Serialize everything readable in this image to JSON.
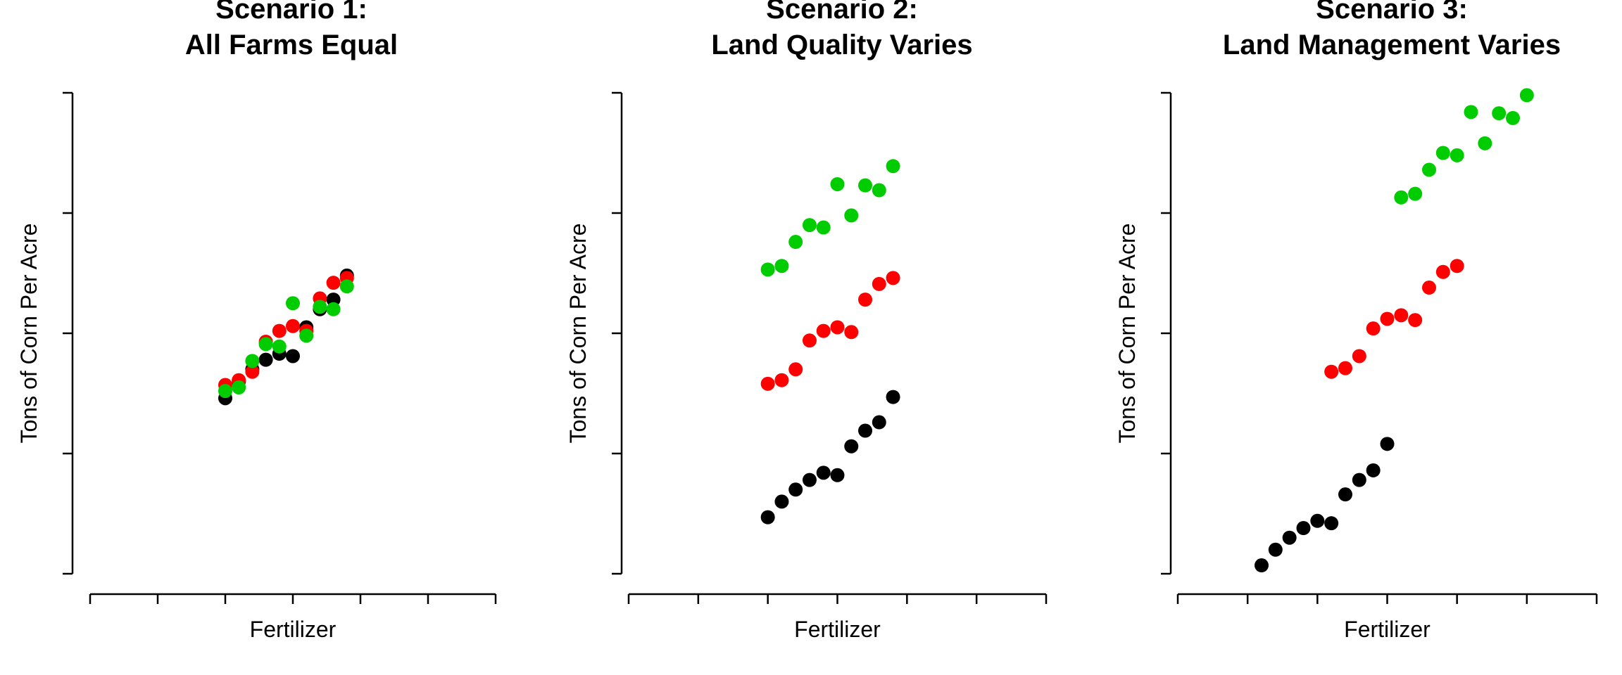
{
  "chart_data": [
    {
      "type": "scatter",
      "title": [
        "Scenario 1:",
        "All Farms Equal"
      ],
      "xlabel": "Fertilizer",
      "ylabel": "Tons of Corn Per Acre",
      "xlim": [
        0,
        12
      ],
      "ylim": [
        0,
        4
      ],
      "xticks": 7,
      "yticks": 5,
      "grid": false,
      "series": [
        {
          "color": "#000000",
          "x": [
            4.0,
            4.4,
            4.8,
            5.2,
            5.6,
            6.0,
            6.4,
            6.8,
            7.2,
            7.6
          ],
          "y": [
            1.46,
            1.6,
            1.7,
            1.78,
            1.83,
            1.81,
            2.05,
            2.2,
            2.28,
            2.48
          ]
        },
        {
          "color": "#FF0000",
          "x": [
            4.0,
            4.4,
            4.8,
            5.2,
            5.6,
            6.0,
            6.4,
            6.8,
            7.2,
            7.6
          ],
          "y": [
            1.57,
            1.61,
            1.68,
            1.93,
            2.02,
            2.06,
            2.02,
            2.29,
            2.42,
            2.46
          ]
        },
        {
          "color": "#00CC00",
          "x": [
            4.0,
            4.4,
            4.8,
            5.2,
            5.6,
            6.0,
            6.4,
            6.8,
            7.2,
            7.6
          ],
          "y": [
            1.52,
            1.55,
            1.77,
            1.91,
            1.89,
            2.25,
            1.98,
            2.22,
            2.2,
            2.39
          ]
        }
      ]
    },
    {
      "type": "scatter",
      "title": [
        "Scenario 2:",
        "Land Quality Varies"
      ],
      "xlabel": "Fertilizer",
      "ylabel": "Tons of Corn Per Acre",
      "xlim": [
        0,
        12
      ],
      "ylim": [
        0,
        4
      ],
      "xticks": 7,
      "yticks": 5,
      "grid": false,
      "series": [
        {
          "color": "#000000",
          "x": [
            4.0,
            4.4,
            4.8,
            5.2,
            5.6,
            6.0,
            6.4,
            6.8,
            7.2,
            7.6
          ],
          "y": [
            0.47,
            0.6,
            0.7,
            0.78,
            0.84,
            0.82,
            1.06,
            1.19,
            1.26,
            1.47
          ]
        },
        {
          "color": "#FF0000",
          "x": [
            4.0,
            4.4,
            4.8,
            5.2,
            5.6,
            6.0,
            6.4,
            6.8,
            7.2,
            7.6
          ],
          "y": [
            1.58,
            1.61,
            1.7,
            1.94,
            2.02,
            2.05,
            2.01,
            2.28,
            2.41,
            2.46
          ]
        },
        {
          "color": "#00CC00",
          "x": [
            4.0,
            4.4,
            4.8,
            5.2,
            5.6,
            6.0,
            6.4,
            6.8,
            7.2,
            7.6
          ],
          "y": [
            2.53,
            2.56,
            2.76,
            2.9,
            2.88,
            3.24,
            2.98,
            3.23,
            3.19,
            3.39
          ]
        }
      ]
    },
    {
      "type": "scatter",
      "title": [
        "Scenario 3:",
        "Land Management Varies"
      ],
      "xlabel": "Fertilizer",
      "ylabel": "Tons of Corn Per Acre",
      "xlim": [
        0,
        12
      ],
      "ylim": [
        0,
        4
      ],
      "xticks": 7,
      "yticks": 5,
      "grid": false,
      "series": [
        {
          "color": "#000000",
          "x": [
            2.4,
            2.8,
            3.2,
            3.6,
            4.0,
            4.4,
            4.8,
            5.2,
            5.6,
            6.0
          ],
          "y": [
            0.07,
            0.2,
            0.3,
            0.38,
            0.44,
            0.42,
            0.66,
            0.78,
            0.86,
            1.08
          ]
        },
        {
          "color": "#FF0000",
          "x": [
            4.4,
            4.8,
            5.2,
            5.6,
            6.0,
            6.4,
            6.8,
            7.2,
            7.6,
            8.0
          ],
          "y": [
            1.68,
            1.71,
            1.81,
            2.04,
            2.12,
            2.15,
            2.11,
            2.38,
            2.51,
            2.56
          ]
        },
        {
          "color": "#00CC00",
          "x": [
            6.4,
            6.8,
            7.2,
            7.6,
            8.0,
            8.4,
            8.8,
            9.2,
            9.6,
            10.0
          ],
          "y": [
            3.13,
            3.16,
            3.36,
            3.5,
            3.48,
            3.84,
            3.58,
            3.83,
            3.79,
            3.98
          ]
        }
      ]
    }
  ]
}
